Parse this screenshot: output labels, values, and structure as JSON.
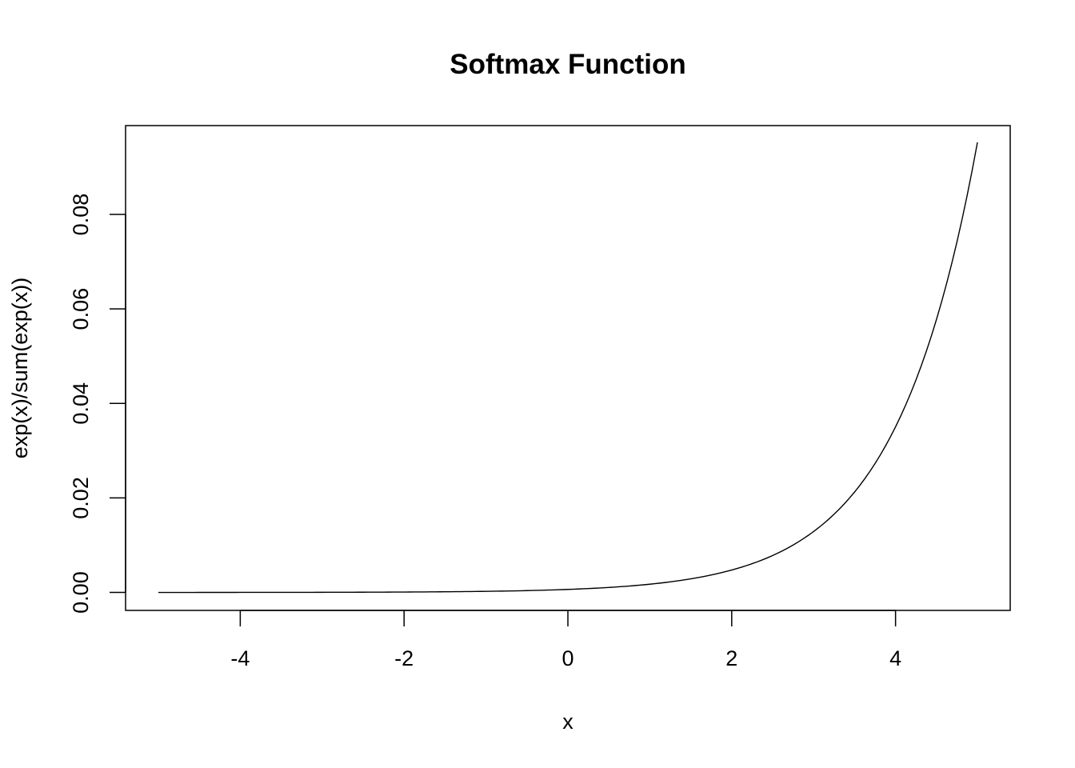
{
  "chart_data": {
    "type": "line",
    "title": "Softmax Function",
    "xlabel": "x",
    "ylabel": "exp(x)/sum(exp(x))",
    "xlim": [
      -5.4,
      5.4
    ],
    "ylim": [
      -0.0038,
      0.0988
    ],
    "x_ticks": [
      -4,
      -2,
      0,
      2,
      4
    ],
    "x_tick_labels": [
      "-4",
      "-2",
      "0",
      "2",
      "4"
    ],
    "y_ticks": [
      0.0,
      0.02,
      0.04,
      0.06,
      0.08
    ],
    "y_tick_labels": [
      "0.00",
      "0.02",
      "0.04",
      "0.06",
      "0.08"
    ],
    "grid": false,
    "series": [
      {
        "color": "#000000",
        "x": [
          -5.0,
          -4.5,
          -4.0,
          -3.5,
          -3.0,
          -2.5,
          -2.0,
          -1.5,
          -1.0,
          -0.5,
          0.0,
          0.5,
          1.0,
          1.5,
          2.0,
          2.5,
          3.0,
          3.5,
          4.0,
          4.5,
          5.0
        ],
        "y": [
          4e-06,
          7e-06,
          1.2e-05,
          1.9e-05,
          3.2e-05,
          5.3e-05,
          8.7e-05,
          0.000143,
          0.000236,
          0.000389,
          0.000642,
          0.001058,
          0.001745,
          0.002877,
          0.004743,
          0.00782,
          0.012894,
          0.021258,
          0.035049,
          0.057787,
          0.095275
        ]
      }
    ]
  }
}
